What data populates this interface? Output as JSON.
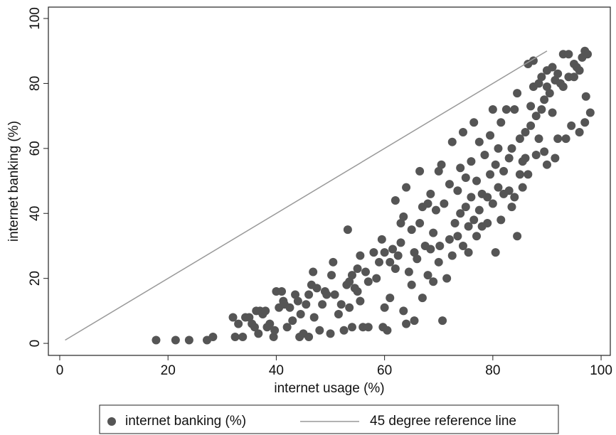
{
  "chart_data": {
    "type": "scatter",
    "x_label": "internet usage (%)",
    "y_label": "internet banking (%)",
    "xlim": [
      -2.1,
      101.7
    ],
    "ylim": [
      -3.7,
      103.5
    ],
    "xticks": [
      0,
      20,
      40,
      60,
      80,
      100
    ],
    "yticks": [
      0,
      20,
      40,
      60,
      80,
      100
    ],
    "grid": false,
    "legend": "bottom",
    "series": [
      {
        "name": "internet banking (%)",
        "type": "scatter",
        "color": "#555555",
        "x": [
          17.8,
          21.4,
          23.9,
          27.2,
          28.3,
          32,
          32.4,
          33,
          33.8,
          34.3,
          35,
          35.5,
          36,
          36.3,
          36.7,
          37,
          37.5,
          38,
          38.3,
          38.8,
          39.5,
          39.7,
          40,
          40.5,
          41,
          41.3,
          41.5,
          42,
          42.5,
          43,
          43.5,
          44,
          44.3,
          44.5,
          45,
          45.5,
          46,
          46,
          46.5,
          46.8,
          47,
          47.5,
          48,
          48.5,
          49,
          49.3,
          50,
          50.2,
          50.5,
          50.8,
          51.5,
          52,
          52.5,
          53,
          53.2,
          53.5,
          53.5,
          54,
          54,
          54.5,
          55,
          55,
          55.5,
          55.5,
          56,
          56.5,
          57,
          57,
          58,
          58.5,
          59,
          59.5,
          59.7,
          60,
          60,
          60.5,
          61,
          61,
          61.5,
          62,
          62,
          62.5,
          63,
          63,
          63.5,
          63.5,
          64,
          64,
          64.5,
          65,
          65,
          65.5,
          65.5,
          66,
          66.5,
          66.5,
          67,
          67,
          67.5,
          68,
          68,
          68.5,
          68.5,
          69,
          69,
          69.5,
          70,
          70,
          70.2,
          70.5,
          70.7,
          71,
          71.5,
          72,
          72,
          72.5,
          72.5,
          73,
          73.5,
          73.5,
          74,
          74,
          74.5,
          74.5,
          75,
          75,
          75.5,
          75.5,
          76,
          76,
          76.5,
          76.5,
          77,
          77,
          77.5,
          77.5,
          78,
          78,
          78.5,
          79,
          79,
          79.5,
          79.5,
          80,
          80,
          80.5,
          80.5,
          81,
          81,
          81.5,
          81.5,
          82,
          82,
          82.5,
          83,
          83,
          83.5,
          83.5,
          84,
          84,
          84.5,
          84.5,
          85,
          85,
          85.5,
          85.5,
          86,
          86,
          86.5,
          86.5,
          87,
          87,
          87.5,
          87.5,
          88,
          88,
          88.5,
          88.5,
          89,
          89,
          89.5,
          89.5,
          90,
          90,
          90,
          90.5,
          91,
          91,
          91.5,
          91.5,
          92,
          92,
          92.5,
          93,
          93,
          93.5,
          94,
          94,
          94.5,
          95,
          95,
          95.5,
          96,
          96,
          96.5,
          97,
          97,
          97.2,
          97.5,
          98
        ],
        "y": [
          1,
          1,
          1,
          1,
          2,
          8,
          2,
          6,
          2,
          8,
          8,
          6,
          5,
          10,
          3,
          10,
          9,
          10,
          5,
          6,
          2,
          4,
          16,
          11,
          16,
          13,
          12,
          5,
          11,
          7,
          15,
          13,
          2,
          9,
          3,
          12,
          2,
          15,
          18,
          22,
          8,
          17,
          4,
          12,
          16,
          15,
          3,
          21,
          25,
          15,
          9,
          12,
          4,
          18,
          35,
          11,
          19,
          21,
          5,
          17,
          23,
          16,
          13,
          27,
          5,
          22,
          5,
          19,
          28,
          20,
          25,
          32,
          5,
          11,
          28,
          4,
          25,
          14,
          29,
          23,
          44,
          27,
          37,
          31,
          39,
          10,
          48,
          6,
          22,
          35,
          18,
          28,
          7,
          26,
          53,
          37,
          14,
          42,
          30,
          21,
          43,
          46,
          29,
          19,
          34,
          41,
          25,
          53,
          30,
          55,
          7,
          43,
          20,
          49,
          32,
          62,
          27,
          37,
          47,
          33,
          54,
          40,
          65,
          30,
          42,
          51,
          36,
          28,
          56,
          45,
          38,
          68,
          50,
          33,
          41,
          62,
          46,
          36,
          58,
          37,
          45,
          64,
          52,
          43,
          72,
          28,
          55,
          48,
          60,
          38,
          68,
          46,
          53,
          72,
          47,
          57,
          60,
          42,
          72,
          45,
          33,
          77,
          52,
          63,
          56,
          48,
          57,
          65,
          86,
          52,
          73,
          67,
          79,
          87,
          58,
          70,
          80,
          63,
          82,
          72,
          59,
          75,
          84,
          55,
          79,
          77,
          85,
          71,
          81,
          57,
          63,
          83,
          80,
          89,
          79,
          63,
          82,
          89,
          67,
          82,
          86,
          85,
          65,
          84,
          88,
          68,
          90,
          76,
          89,
          71
        ]
      },
      {
        "name": "45 degree reference line",
        "type": "line",
        "color": "#999999",
        "x": [
          1,
          90
        ],
        "y": [
          1,
          90
        ]
      }
    ]
  }
}
